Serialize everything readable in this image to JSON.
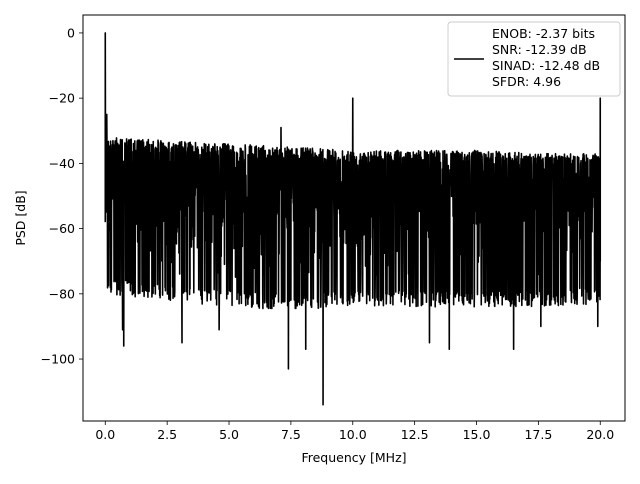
{
  "chart_data": {
    "type": "line",
    "title": "",
    "xlabel": "Frequency [MHz]",
    "ylabel": "PSD [dB]",
    "xlim": [
      -0.9,
      21.0
    ],
    "ylim": [
      -119.0,
      5.5
    ],
    "xticks": [
      0.0,
      2.5,
      5.0,
      7.5,
      10.0,
      12.5,
      15.0,
      17.5,
      20.0
    ],
    "xtick_labels": [
      "0.0",
      "2.5",
      "5.0",
      "7.5",
      "10.0",
      "12.5",
      "15.0",
      "17.5",
      "20.0"
    ],
    "yticks": [
      0,
      -20,
      -40,
      -60,
      -80,
      -100
    ],
    "ytick_labels": [
      "0",
      "−20",
      "−40",
      "−60",
      "−80",
      "−100"
    ],
    "grid": true,
    "legend_position": "upper-right",
    "line_color": "#000000",
    "series": [
      {
        "description_lines": [
          "ENOB: -2.37 bits",
          "SNR: -12.39 dB",
          "SINAD: -12.48 dB",
          "SFDR: 4.96"
        ],
        "spikes": [
          {
            "x": 0.0,
            "y": 0.0
          },
          {
            "x": 0.06,
            "y": -25
          },
          {
            "x": 7.1,
            "y": -29
          },
          {
            "x": 10.0,
            "y": -20
          },
          {
            "x": 20.0,
            "y": -20
          }
        ],
        "envelope_top": {
          "x": [
            0.1,
            2.5,
            5.0,
            7.5,
            10.0,
            12.5,
            15.0,
            17.5,
            20.0
          ],
          "y": [
            -32,
            -33,
            -34,
            -35,
            -36,
            -36,
            -36,
            -37,
            -37
          ]
        },
        "envelope_bottom": {
          "x": [
            0.1,
            2.5,
            5.0,
            7.5,
            10.0,
            12.5,
            15.0,
            17.5,
            20.0
          ],
          "y": [
            -80,
            -82,
            -84,
            -85,
            -84,
            -84,
            -84,
            -84,
            -83
          ]
        },
        "dips": [
          {
            "x": 0.75,
            "y": -96
          },
          {
            "x": 0.7,
            "y": -91
          },
          {
            "x": 3.1,
            "y": -95
          },
          {
            "x": 4.6,
            "y": -91
          },
          {
            "x": 7.4,
            "y": -103
          },
          {
            "x": 8.1,
            "y": -97
          },
          {
            "x": 8.8,
            "y": -114
          },
          {
            "x": 13.1,
            "y": -95
          },
          {
            "x": 13.9,
            "y": -97
          },
          {
            "x": 16.5,
            "y": -97
          },
          {
            "x": 17.6,
            "y": -90
          },
          {
            "x": 19.9,
            "y": -90
          }
        ]
      }
    ]
  }
}
